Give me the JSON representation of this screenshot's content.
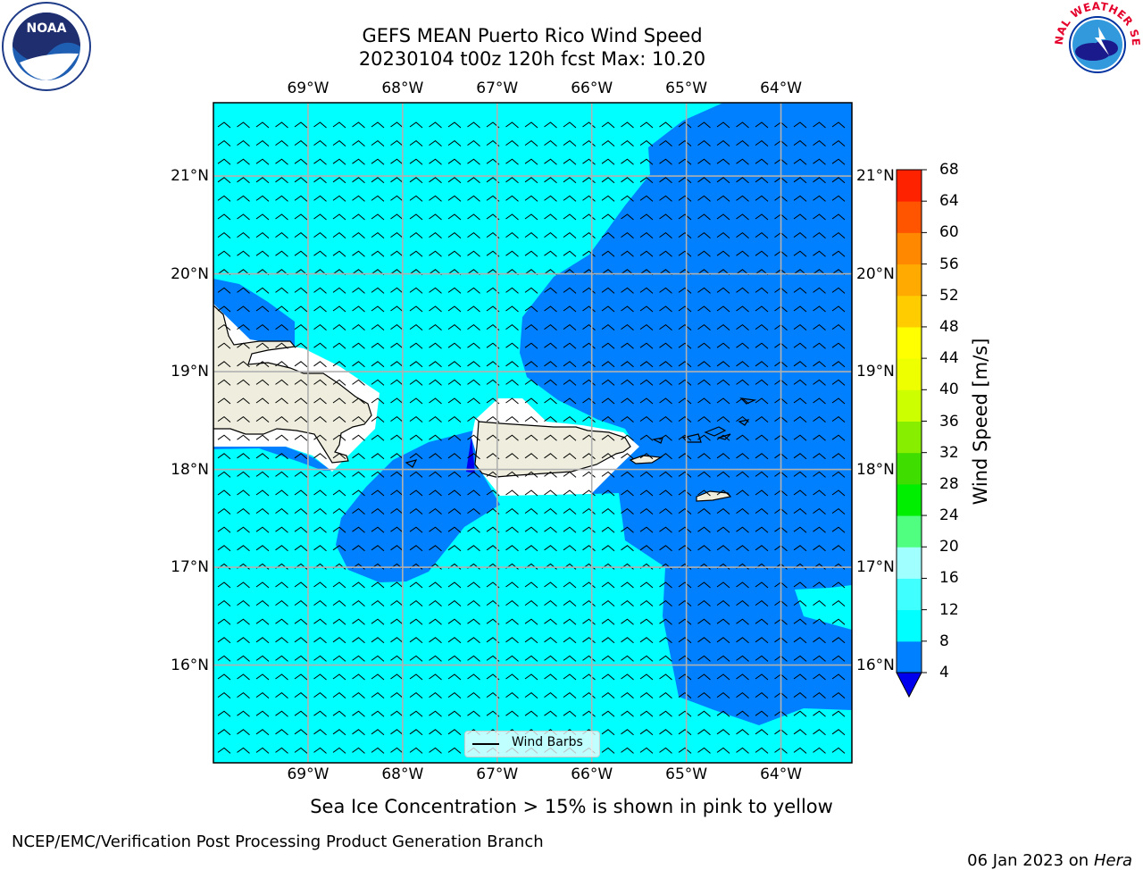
{
  "title": {
    "line1": "GEFS MEAN Puerto Rico Wind Speed",
    "line2": "20230104 t00z 120h fcst   Max: 10.20"
  },
  "axes": {
    "lon_ticks": [
      "69°W",
      "68°W",
      "67°W",
      "66°W",
      "65°W",
      "64°W"
    ],
    "lat_ticks": [
      "21°N",
      "20°N",
      "19°N",
      "18°N",
      "17°N",
      "16°N"
    ],
    "lon_values": [
      -69,
      -68,
      -67,
      -66,
      -65,
      -64
    ],
    "lat_values": [
      21,
      20,
      19,
      18,
      17,
      16
    ],
    "lon_range": [
      -70.0,
      -63.25
    ],
    "lat_range": [
      15.0,
      21.75
    ],
    "grid": true
  },
  "legend": {
    "label": "Wind Barbs",
    "placement": "bottom-center"
  },
  "colorbar": {
    "label": "Wind Speed [m/s]",
    "ticks": [
      "68",
      "64",
      "60",
      "56",
      "52",
      "48",
      "44",
      "40",
      "36",
      "32",
      "28",
      "24",
      "20",
      "16",
      "12",
      "8",
      "4"
    ],
    "levels": [
      4,
      8,
      12,
      16,
      20,
      24,
      28,
      32,
      36,
      40,
      44,
      48,
      52,
      56,
      60,
      64,
      68
    ],
    "colors": [
      "#0080ff",
      "#00ffff",
      "#40ffff",
      "#a0ffff",
      "#50ff80",
      "#00ee00",
      "#40dd00",
      "#88ee00",
      "#ccff00",
      "#eeff00",
      "#ffff00",
      "#ffcc00",
      "#ffaa00",
      "#ff8800",
      "#ff5500",
      "#ff2200"
    ],
    "under_color": "#0000ee"
  },
  "map_colors": {
    "ocean_low": "#00ffff",
    "ocean_high": "#0080ff",
    "land": "#efeede",
    "coast": "#000000"
  },
  "logos": {
    "left": "NOAA",
    "right": "NATIONAL WEATHER SERVICE"
  },
  "note": "Sea Ice Concentration > 15% is shown in pink to yellow",
  "footer": {
    "left": "NCEP/EMC/Verification Post Processing Product Generation Branch",
    "right_date": "06 Jan 2023 on ",
    "right_host": "Hera"
  }
}
